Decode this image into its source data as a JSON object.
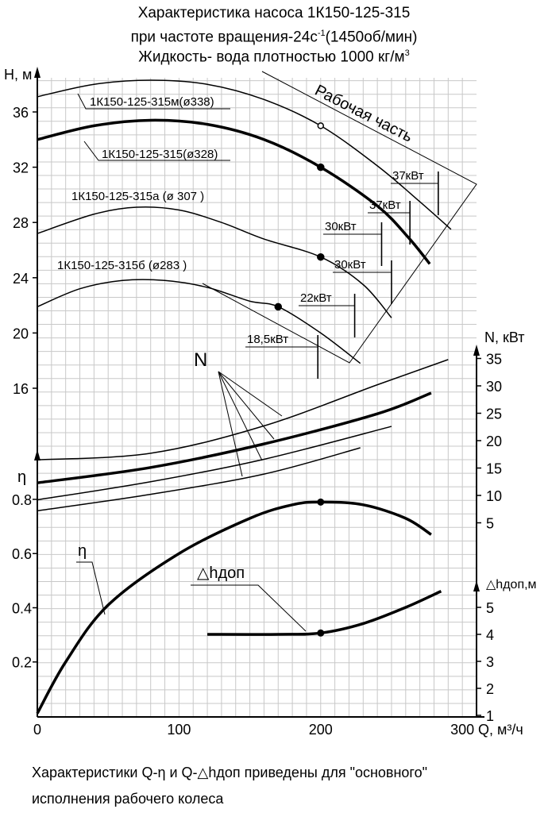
{
  "title": {
    "line1": "Характеристика насоса 1К150-125-315",
    "line2_main": "при частоте вращения-24с",
    "line2_sup": "-1",
    "line2_tail": "(1450об/мин)",
    "line3_main": "Жидкость- вода плотностью 1000 кг/м",
    "line3_sup": "3"
  },
  "footer": {
    "line1": "Характеристики Q-η и Q-△hдоп приведены для \"основного\"",
    "line2": "исполнения рабочего колеса"
  },
  "chart_data": {
    "type": "line",
    "x_axis": {
      "label": "Q, м³/ч",
      "range": [
        0,
        310
      ],
      "ticks": [
        0,
        100,
        200,
        300
      ]
    },
    "axes": {
      "H": {
        "label": "H, м",
        "range": [
          13,
          38.5
        ],
        "ticks": [
          16,
          20,
          24,
          28,
          32,
          36
        ]
      },
      "N": {
        "label": "N, кВт",
        "range": [
          0,
          37.5
        ],
        "ticks": [
          5,
          10,
          15,
          20,
          25,
          30,
          35
        ]
      },
      "eta": {
        "label": "η",
        "range": [
          0,
          0.87
        ],
        "ticks": [
          0.2,
          0.4,
          0.6,
          0.8
        ]
      },
      "npsh": {
        "label": "△hдоп,м",
        "range": [
          1,
          6.3
        ],
        "ticks": [
          1,
          2,
          3,
          4,
          5
        ]
      }
    },
    "grid": true,
    "head_curves": [
      {
        "name": "1К150-125-315м(ø338)",
        "bold": false,
        "points": [
          [
            0,
            37.1
          ],
          [
            40,
            38.0
          ],
          [
            80,
            38.3
          ],
          [
            120,
            38.0
          ],
          [
            160,
            36.9
          ],
          [
            200,
            35.0
          ],
          [
            240,
            32.1
          ],
          [
            270,
            29.5
          ],
          [
            292,
            27.5
          ]
        ]
      },
      {
        "name": "1К150-125-315(ø328)",
        "bold": true,
        "points": [
          [
            0,
            34.0
          ],
          [
            40,
            35.0
          ],
          [
            80,
            35.4
          ],
          [
            120,
            35.1
          ],
          [
            160,
            34.0
          ],
          [
            200,
            32.0
          ],
          [
            240,
            29.2
          ],
          [
            262,
            26.9
          ],
          [
            277,
            25.0
          ]
        ]
      },
      {
        "name": "1К150-125-315а (ø 307 )",
        "bold": false,
        "points": [
          [
            0,
            27.2
          ],
          [
            40,
            28.6
          ],
          [
            70,
            29.1
          ],
          [
            100,
            28.9
          ],
          [
            130,
            28.0
          ],
          [
            160,
            26.8
          ],
          [
            200,
            25.5
          ],
          [
            230,
            23.5
          ],
          [
            250,
            21.1
          ]
        ]
      },
      {
        "name": "1К150-125-315б (ø283 )",
        "bold": false,
        "points": [
          [
            0,
            21.9
          ],
          [
            30,
            23.2
          ],
          [
            60,
            23.8
          ],
          [
            90,
            23.8
          ],
          [
            120,
            23.3
          ],
          [
            150,
            22.3
          ],
          [
            170,
            21.9
          ],
          [
            200,
            20.0
          ],
          [
            228,
            17.8
          ]
        ]
      }
    ],
    "power_curves": [
      {
        "name": "N 338",
        "bold": false,
        "points": [
          [
            0,
            16.5
          ],
          [
            80,
            17.7
          ],
          [
            160,
            22.7
          ],
          [
            240,
            30.2
          ],
          [
            290,
            34.8
          ]
        ]
      },
      {
        "name": "N 328",
        "bold": true,
        "points": [
          [
            0,
            12.3
          ],
          [
            80,
            15.1
          ],
          [
            160,
            19.4
          ],
          [
            240,
            24.9
          ],
          [
            278,
            28.7
          ]
        ]
      },
      {
        "name": "N 307",
        "bold": false,
        "points": [
          [
            0,
            9.2
          ],
          [
            80,
            12.5
          ],
          [
            160,
            16.6
          ],
          [
            250,
            22.6
          ]
        ]
      },
      {
        "name": "N 283",
        "bold": false,
        "points": [
          [
            0,
            7.2
          ],
          [
            80,
            10.2
          ],
          [
            160,
            13.9
          ],
          [
            228,
            18.7
          ]
        ]
      }
    ],
    "efficiency_curve": {
      "name": "η",
      "points": [
        [
          0,
          0.01
        ],
        [
          20,
          0.2
        ],
        [
          50,
          0.41
        ],
        [
          100,
          0.6
        ],
        [
          150,
          0.73
        ],
        [
          180,
          0.78
        ],
        [
          200,
          0.79
        ],
        [
          230,
          0.78
        ],
        [
          260,
          0.73
        ],
        [
          278,
          0.67
        ]
      ]
    },
    "npsh_curve": {
      "name": "△hдоп",
      "points": [
        [
          120,
          4.0
        ],
        [
          170,
          4.0
        ],
        [
          200,
          4.05
        ],
        [
          230,
          4.4
        ],
        [
          260,
          5.0
        ],
        [
          285,
          5.6
        ]
      ]
    },
    "operating_points": [
      [
        200,
        35.0
      ],
      [
        200,
        32.0
      ],
      [
        200,
        25.5
      ],
      [
        170,
        21.9
      ]
    ],
    "power_annotations": [
      "37кВт",
      "37кВт",
      "30кВт",
      "30кВт",
      "22кВт",
      "18,5кВт"
    ],
    "working_zone_label": "Рабочая часть",
    "curve_labels": {
      "N": "N",
      "eta": "η",
      "npsh": "△hдоп"
    }
  }
}
